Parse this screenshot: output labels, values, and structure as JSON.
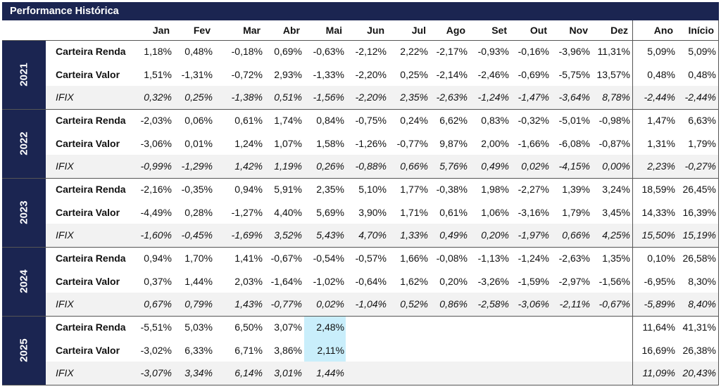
{
  "title": "Performance Histórica",
  "headers": [
    "Jan",
    "Fev",
    "Mar",
    "Abr",
    "Mai",
    "Jun",
    "Jul",
    "Ago",
    "Set",
    "Out",
    "Nov",
    "Dez",
    "Ano",
    "Início"
  ],
  "colors": {
    "header_bg": "#1b2551",
    "ifix_row_bg": "#f2f2f2",
    "highlight": "#c9eefb"
  },
  "highlighted_cells": [
    {
      "year": "2025",
      "month": "Mai"
    }
  ],
  "years": [
    {
      "year": "2021",
      "rows": [
        {
          "label": "Carteira Renda",
          "values": [
            "1,18%",
            "0,48%",
            "-0,18%",
            "0,69%",
            "-0,63%",
            "-2,12%",
            "2,22%",
            "-2,17%",
            "-0,93%",
            "-0,16%",
            "-3,96%",
            "11,31%",
            "5,09%",
            "5,09%"
          ]
        },
        {
          "label": "Carteira Valor",
          "values": [
            "1,51%",
            "-1,31%",
            "-0,72%",
            "2,93%",
            "-1,33%",
            "-2,20%",
            "0,25%",
            "-2,14%",
            "-2,46%",
            "-0,69%",
            "-5,75%",
            "13,57%",
            "0,48%",
            "0,48%"
          ]
        },
        {
          "label": "IFIX",
          "values": [
            "0,32%",
            "0,25%",
            "-1,38%",
            "0,51%",
            "-1,56%",
            "-2,20%",
            "2,35%",
            "-2,63%",
            "-1,24%",
            "-1,47%",
            "-3,64%",
            "8,78%",
            "-2,44%",
            "-2,44%"
          ]
        }
      ]
    },
    {
      "year": "2022",
      "rows": [
        {
          "label": "Carteira Renda",
          "values": [
            "-2,03%",
            "0,06%",
            "0,61%",
            "1,74%",
            "0,84%",
            "-0,75%",
            "0,24%",
            "6,62%",
            "0,83%",
            "-0,32%",
            "-5,01%",
            "-0,98%",
            "1,47%",
            "6,63%"
          ]
        },
        {
          "label": "Carteira Valor",
          "values": [
            "-3,06%",
            "0,01%",
            "1,24%",
            "1,07%",
            "1,58%",
            "-1,26%",
            "-0,77%",
            "9,87%",
            "2,00%",
            "-1,66%",
            "-6,08%",
            "-0,87%",
            "1,31%",
            "1,79%"
          ]
        },
        {
          "label": "IFIX",
          "values": [
            "-0,99%",
            "-1,29%",
            "1,42%",
            "1,19%",
            "0,26%",
            "-0,88%",
            "0,66%",
            "5,76%",
            "0,49%",
            "0,02%",
            "-4,15%",
            "0,00%",
            "2,23%",
            "-0,27%"
          ]
        }
      ]
    },
    {
      "year": "2023",
      "rows": [
        {
          "label": "Carteira Renda",
          "values": [
            "-2,16%",
            "-0,35%",
            "0,94%",
            "5,91%",
            "2,35%",
            "5,10%",
            "1,77%",
            "-0,38%",
            "1,98%",
            "-2,27%",
            "1,39%",
            "3,24%",
            "18,59%",
            "26,45%"
          ]
        },
        {
          "label": "Carteira Valor",
          "values": [
            "-4,49%",
            "0,28%",
            "-1,27%",
            "4,40%",
            "5,69%",
            "3,90%",
            "1,71%",
            "0,61%",
            "1,06%",
            "-3,16%",
            "1,79%",
            "3,45%",
            "14,33%",
            "16,39%"
          ]
        },
        {
          "label": "IFIX",
          "values": [
            "-1,60%",
            "-0,45%",
            "-1,69%",
            "3,52%",
            "5,43%",
            "4,70%",
            "1,33%",
            "0,49%",
            "0,20%",
            "-1,97%",
            "0,66%",
            "4,25%",
            "15,50%",
            "15,19%"
          ]
        }
      ]
    },
    {
      "year": "2024",
      "rows": [
        {
          "label": "Carteira Renda",
          "values": [
            "0,94%",
            "1,70%",
            "1,41%",
            "-0,67%",
            "-0,54%",
            "-0,57%",
            "1,66%",
            "-0,08%",
            "-1,13%",
            "-1,24%",
            "-2,63%",
            "1,35%",
            "0,10%",
            "26,58%"
          ]
        },
        {
          "label": "Carteira Valor",
          "values": [
            "0,37%",
            "1,44%",
            "2,03%",
            "-1,64%",
            "-1,02%",
            "-0,64%",
            "1,62%",
            "0,20%",
            "-3,26%",
            "-1,59%",
            "-2,97%",
            "-1,56%",
            "-6,95%",
            "8,30%"
          ]
        },
        {
          "label": "IFIX",
          "values": [
            "0,67%",
            "0,79%",
            "1,43%",
            "-0,77%",
            "0,02%",
            "-1,04%",
            "0,52%",
            "0,86%",
            "-2,58%",
            "-3,06%",
            "-2,11%",
            "-0,67%",
            "-5,89%",
            "8,40%"
          ]
        }
      ]
    },
    {
      "year": "2025",
      "rows": [
        {
          "label": "Carteira Renda",
          "values": [
            "-5,51%",
            "5,03%",
            "6,50%",
            "3,07%",
            "2,48%",
            "",
            "",
            "",
            "",
            "",
            "",
            "",
            "11,64%",
            "41,31%"
          ]
        },
        {
          "label": "Carteira Valor",
          "values": [
            "-3,02%",
            "6,33%",
            "6,71%",
            "3,86%",
            "2,11%",
            "",
            "",
            "",
            "",
            "",
            "",
            "",
            "16,69%",
            "26,38%"
          ]
        },
        {
          "label": "IFIX",
          "values": [
            "-3,07%",
            "3,34%",
            "6,14%",
            "3,01%",
            "1,44%",
            "",
            "",
            "",
            "",
            "",
            "",
            "",
            "11,09%",
            "20,43%"
          ]
        }
      ]
    }
  ]
}
